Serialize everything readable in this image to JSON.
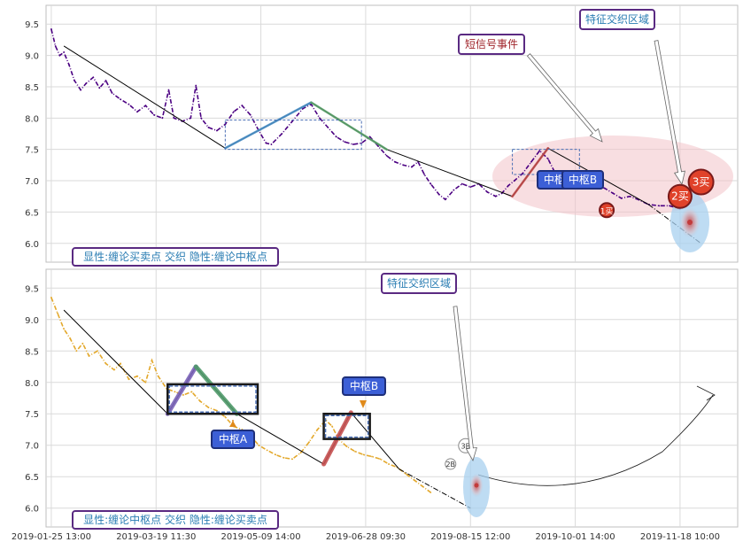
{
  "colors": {
    "price_top": "#4b0082",
    "price_bottom": "#e3a82b",
    "trend_line": "#000000",
    "pivot_box": "#4a6fb5",
    "zone_fill": "#f3c2c8",
    "marker_fill": "#e0422a",
    "label_fill": "#3c5fd6",
    "highlight_blue": "#a8d0ef",
    "label_border": "#5a2a82"
  },
  "annotations": {
    "top_feature": "特征交织区域",
    "top_short_signal": "短信号事件",
    "top_pivot_a": "中枢A",
    "top_pivot_b": "中枢B",
    "top_buy1": "1买",
    "top_buy2": "2买",
    "top_buy3": "3买",
    "top_legend": "显性:缠论买卖点 交织 隐性:缠论中枢点",
    "bottom_feature": "特征交织区域",
    "bottom_pivot_a": "中枢A",
    "bottom_pivot_b": "中枢B",
    "bottom_2b": "2B",
    "bottom_3b": "3B",
    "bottom_legend": "显性:缠论中枢点 交织 隐性:缠论买卖点"
  },
  "chart_data": [
    {
      "type": "line",
      "panel": "top",
      "x_tick_labels": [
        "2019-01-25 13:00",
        "2019-03-19 11:30",
        "2019-05-09 14:00",
        "2019-06-28 09:30",
        "2019-08-15 12:00",
        "2019-10-01 14:00",
        "2019-11-18 10:00"
      ],
      "x_range": [
        -0.05,
        6.55
      ],
      "ylim": [
        5.7,
        9.8
      ],
      "y_ticks": [
        6.0,
        6.5,
        7.0,
        7.5,
        8.0,
        8.5,
        9.0,
        9.5
      ],
      "grid": true,
      "price_series": [
        [
          0.0,
          9.42
        ],
        [
          0.04,
          9.15
        ],
        [
          0.08,
          9.0
        ],
        [
          0.12,
          9.05
        ],
        [
          0.17,
          8.85
        ],
        [
          0.22,
          8.6
        ],
        [
          0.28,
          8.45
        ],
        [
          0.33,
          8.55
        ],
        [
          0.4,
          8.65
        ],
        [
          0.46,
          8.48
        ],
        [
          0.52,
          8.6
        ],
        [
          0.58,
          8.4
        ],
        [
          0.66,
          8.3
        ],
        [
          0.74,
          8.22
        ],
        [
          0.82,
          8.1
        ],
        [
          0.9,
          8.2
        ],
        [
          0.98,
          8.05
        ],
        [
          1.06,
          8.0
        ],
        [
          1.12,
          8.45
        ],
        [
          1.17,
          8.0
        ],
        [
          1.25,
          7.95
        ],
        [
          1.33,
          8.0
        ],
        [
          1.38,
          8.52
        ],
        [
          1.43,
          8.0
        ],
        [
          1.5,
          7.85
        ],
        [
          1.58,
          7.8
        ],
        [
          1.66,
          7.9
        ],
        [
          1.74,
          8.1
        ],
        [
          1.82,
          8.2
        ],
        [
          1.9,
          8.05
        ],
        [
          1.98,
          7.8
        ],
        [
          2.05,
          7.6
        ],
        [
          2.1,
          7.58
        ],
        [
          2.2,
          7.75
        ],
        [
          2.3,
          7.95
        ],
        [
          2.4,
          8.15
        ],
        [
          2.48,
          8.22
        ],
        [
          2.56,
          8.0
        ],
        [
          2.64,
          7.85
        ],
        [
          2.72,
          7.7
        ],
        [
          2.8,
          7.62
        ],
        [
          2.88,
          7.58
        ],
        [
          2.96,
          7.6
        ],
        [
          3.04,
          7.7
        ],
        [
          3.12,
          7.55
        ],
        [
          3.2,
          7.4
        ],
        [
          3.28,
          7.3
        ],
        [
          3.36,
          7.25
        ],
        [
          3.44,
          7.22
        ],
        [
          3.5,
          7.3
        ],
        [
          3.56,
          7.1
        ],
        [
          3.62,
          6.95
        ],
        [
          3.7,
          6.78
        ],
        [
          3.76,
          6.7
        ],
        [
          3.84,
          6.85
        ],
        [
          3.92,
          6.95
        ],
        [
          4.0,
          6.9
        ],
        [
          4.08,
          6.95
        ],
        [
          4.16,
          6.82
        ],
        [
          4.24,
          6.75
        ],
        [
          4.3,
          6.8
        ],
        [
          4.36,
          6.92
        ],
        [
          4.42,
          7.0
        ],
        [
          4.5,
          7.12
        ],
        [
          4.58,
          7.3
        ],
        [
          4.66,
          7.48
        ],
        [
          4.74,
          7.35
        ],
        [
          4.8,
          7.15
        ],
        [
          4.88,
          7.05
        ],
        [
          4.96,
          7.15
        ],
        [
          5.04,
          7.05
        ],
        [
          5.12,
          6.95
        ],
        [
          5.2,
          6.92
        ],
        [
          5.28,
          6.88
        ],
        [
          5.36,
          6.8
        ],
        [
          5.44,
          6.72
        ],
        [
          5.52,
          6.75
        ],
        [
          5.6,
          6.7
        ],
        [
          5.7,
          6.62
        ],
        [
          5.8,
          6.6
        ],
        [
          5.9,
          6.6
        ],
        [
          6.0,
          6.55
        ]
      ],
      "trend_segments": [
        [
          [
            0.12,
            9.15
          ],
          [
            1.66,
            7.52
          ]
        ],
        [
          [
            1.66,
            7.52
          ],
          [
            2.48,
            8.25
          ]
        ],
        [
          [
            2.48,
            8.25
          ],
          [
            3.2,
            7.5
          ]
        ],
        [
          [
            3.2,
            7.5
          ],
          [
            4.4,
            6.75
          ]
        ],
        [
          [
            4.4,
            6.75
          ],
          [
            4.74,
            7.52
          ]
        ],
        [
          [
            4.74,
            7.52
          ],
          [
            5.7,
            6.62
          ]
        ],
        [
          [
            5.7,
            6.62
          ],
          [
            6.2,
            6.0
          ]
        ]
      ],
      "pivot_zones": [
        {
          "name": "中枢A",
          "x": [
            1.66,
            2.96
          ],
          "y": [
            7.5,
            7.97
          ]
        },
        {
          "name": "中枢B",
          "x": [
            4.4,
            5.04
          ],
          "y": [
            7.1,
            7.5
          ]
        }
      ],
      "buy_points": [
        {
          "label": "1买",
          "x": 5.3,
          "y": 6.53
        },
        {
          "label": "2买",
          "x": 6.0,
          "y": 6.75
        },
        {
          "label": "3买",
          "x": 6.2,
          "y": 6.98
        }
      ]
    },
    {
      "type": "line",
      "panel": "bottom",
      "x_tick_labels": [
        "2019-01-25 13:00",
        "2019-03-19 11:30",
        "2019-05-09 14:00",
        "2019-06-28 09:30",
        "2019-08-15 12:00",
        "2019-10-01 14:00",
        "2019-11-18 10:00"
      ],
      "x_range": [
        -0.05,
        6.55
      ],
      "ylim": [
        5.7,
        9.8
      ],
      "y_ticks": [
        6.0,
        6.5,
        7.0,
        7.5,
        8.0,
        8.5,
        9.0,
        9.5
      ],
      "grid": true,
      "price_series": [
        [
          0.0,
          9.35
        ],
        [
          0.06,
          9.1
        ],
        [
          0.12,
          8.85
        ],
        [
          0.18,
          8.7
        ],
        [
          0.24,
          8.5
        ],
        [
          0.3,
          8.62
        ],
        [
          0.36,
          8.42
        ],
        [
          0.44,
          8.5
        ],
        [
          0.52,
          8.3
        ],
        [
          0.6,
          8.2
        ],
        [
          0.66,
          8.3
        ],
        [
          0.74,
          8.05
        ],
        [
          0.82,
          8.1
        ],
        [
          0.9,
          8.0
        ],
        [
          0.96,
          8.35
        ],
        [
          1.02,
          8.1
        ],
        [
          1.1,
          7.9
        ],
        [
          1.18,
          7.85
        ],
        [
          1.26,
          7.8
        ],
        [
          1.34,
          7.85
        ],
        [
          1.42,
          7.7
        ],
        [
          1.5,
          7.6
        ],
        [
          1.58,
          7.55
        ],
        [
          1.66,
          7.45
        ],
        [
          1.74,
          7.3
        ],
        [
          1.82,
          7.25
        ],
        [
          1.9,
          7.15
        ],
        [
          1.98,
          7.0
        ],
        [
          2.06,
          6.92
        ],
        [
          2.14,
          6.85
        ],
        [
          2.22,
          6.8
        ],
        [
          2.3,
          6.78
        ],
        [
          2.38,
          6.88
        ],
        [
          2.46,
          7.05
        ],
        [
          2.54,
          7.25
        ],
        [
          2.62,
          7.4
        ],
        [
          2.68,
          7.3
        ],
        [
          2.74,
          7.1
        ],
        [
          2.82,
          6.98
        ],
        [
          2.9,
          6.9
        ],
        [
          2.98,
          6.85
        ],
        [
          3.06,
          6.82
        ],
        [
          3.14,
          6.78
        ],
        [
          3.22,
          6.7
        ],
        [
          3.3,
          6.65
        ],
        [
          3.38,
          6.55
        ],
        [
          3.46,
          6.45
        ],
        [
          3.54,
          6.35
        ],
        [
          3.62,
          6.25
        ]
      ],
      "trend_segments": [
        [
          [
            0.12,
            9.15
          ],
          [
            1.11,
            7.5
          ]
        ],
        [
          [
            1.11,
            7.5
          ],
          [
            1.38,
            8.25
          ]
        ],
        [
          [
            1.38,
            8.25
          ],
          [
            1.77,
            7.5
          ]
        ],
        [
          [
            1.77,
            7.5
          ],
          [
            2.6,
            6.7
          ]
        ],
        [
          [
            2.6,
            6.7
          ],
          [
            2.86,
            7.52
          ]
        ],
        [
          [
            2.86,
            7.52
          ],
          [
            3.32,
            6.62
          ]
        ],
        [
          [
            3.32,
            6.62
          ],
          [
            4.0,
            6.0
          ]
        ]
      ],
      "pivot_zones": [
        {
          "name": "中枢A",
          "x": [
            1.11,
            1.97
          ],
          "y": [
            7.5,
            7.97
          ]
        },
        {
          "name": "中枢B",
          "x": [
            2.6,
            3.04
          ],
          "y": [
            7.1,
            7.5
          ]
        }
      ],
      "buy_points": [
        {
          "label": "2B",
          "x": 3.81,
          "y": 6.8
        },
        {
          "label": "3B",
          "x": 3.92,
          "y": 6.95
        }
      ]
    }
  ]
}
